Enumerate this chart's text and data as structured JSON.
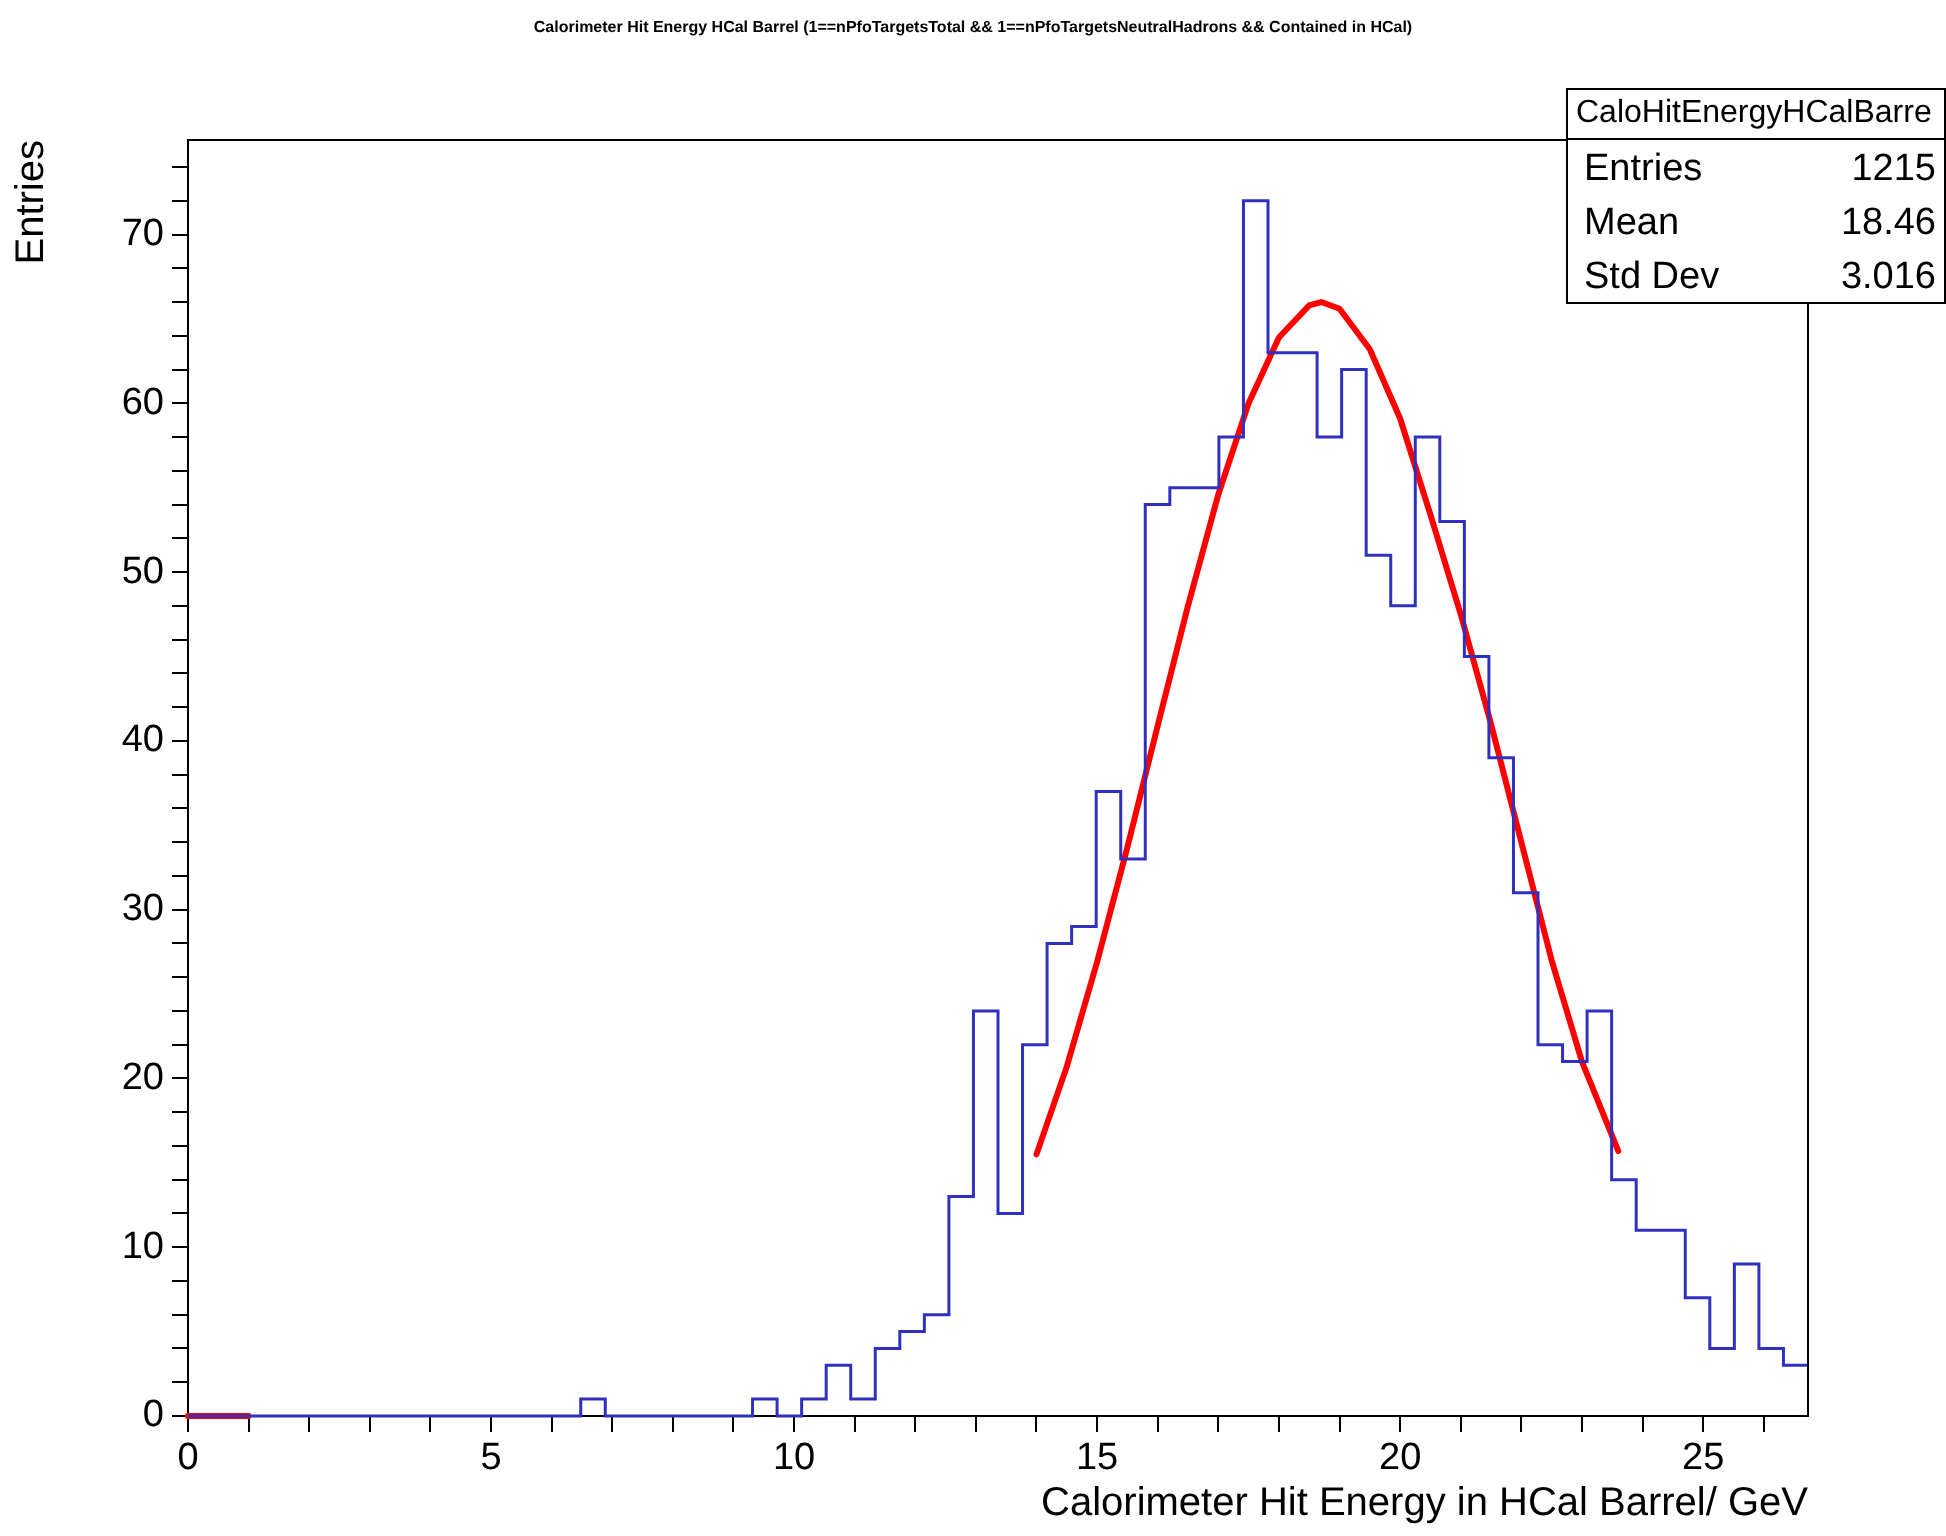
{
  "chart_data": {
    "type": "histogram",
    "title": "Calorimeter Hit Energy HCal Barrel (1==nPfoTargetsTotal && 1==nPfoTargetsNeutralHadrons && Contained in HCal)",
    "xlabel": "Calorimeter Hit Energy in HCal Barrel/ GeV",
    "ylabel": "Entries",
    "xlim": [
      0,
      26.73
    ],
    "ylim": [
      0,
      75.6
    ],
    "xticks": [
      0,
      {
        "value": 1,
        "label": null
      },
      {
        "value": 2,
        "label": null
      },
      {
        "value": 3,
        "label": null
      },
      {
        "value": 4,
        "label": null
      },
      5,
      {
        "value": 6,
        "label": null
      },
      {
        "value": 7,
        "label": null
      },
      {
        "value": 8,
        "label": null
      },
      {
        "value": 9,
        "label": null
      },
      10,
      {
        "value": 11,
        "label": null
      },
      {
        "value": 12,
        "label": null
      },
      {
        "value": 13,
        "label": null
      },
      {
        "value": 14,
        "label": null
      },
      15,
      {
        "value": 16,
        "label": null
      },
      {
        "value": 17,
        "label": null
      },
      {
        "value": 18,
        "label": null
      },
      {
        "value": 19,
        "label": null
      },
      20,
      {
        "value": 21,
        "label": null
      },
      {
        "value": 22,
        "label": null
      },
      {
        "value": 23,
        "label": null
      },
      {
        "value": 24,
        "label": null
      },
      25,
      {
        "value": 26,
        "label": null
      }
    ],
    "yticks": [
      0,
      {
        "value": 2,
        "label": null
      },
      {
        "value": 4,
        "label": null
      },
      {
        "value": 6,
        "label": null
      },
      {
        "value": 8,
        "label": null
      },
      10,
      {
        "value": 12,
        "label": null
      },
      {
        "value": 14,
        "label": null
      },
      {
        "value": 16,
        "label": null
      },
      {
        "value": 18,
        "label": null
      },
      20,
      {
        "value": 22,
        "label": null
      },
      {
        "value": 24,
        "label": null
      },
      {
        "value": 26,
        "label": null
      },
      {
        "value": 28,
        "label": null
      },
      30,
      {
        "value": 32,
        "label": null
      },
      {
        "value": 34,
        "label": null
      },
      {
        "value": 36,
        "label": null
      },
      {
        "value": 38,
        "label": null
      },
      40,
      {
        "value": 42,
        "label": null
      },
      {
        "value": 44,
        "label": null
      },
      {
        "value": 46,
        "label": null
      },
      {
        "value": 48,
        "label": null
      },
      50,
      {
        "value": 52,
        "label": null
      },
      {
        "value": 54,
        "label": null
      },
      {
        "value": 56,
        "label": null
      },
      {
        "value": 58,
        "label": null
      },
      60,
      {
        "value": 62,
        "label": null
      },
      {
        "value": 64,
        "label": null
      },
      {
        "value": 66,
        "label": null
      },
      {
        "value": 68,
        "label": null
      },
      70,
      {
        "value": 72,
        "label": null
      },
      {
        "value": 74,
        "label": null
      }
    ],
    "series": [
      {
        "type": "histogram",
        "color": "#3030c0",
        "bins": [
          0,
          0.405,
          0.81,
          1.215,
          1.62,
          2.025,
          2.43,
          2.835,
          3.24,
          3.645,
          4.05,
          4.455,
          4.86,
          5.265,
          5.67,
          6.075,
          6.48,
          6.885,
          7.29,
          7.695,
          8.1,
          8.505,
          8.91,
          9.315,
          9.72,
          10.125,
          10.53,
          10.935,
          11.34,
          11.745,
          12.15,
          12.555,
          12.96,
          13.365,
          13.77,
          14.175,
          14.58,
          14.985,
          15.39,
          15.795,
          16.2,
          16.605,
          17.01,
          17.415,
          17.82,
          18.225,
          18.63,
          19.035,
          19.44,
          19.845,
          20.25,
          20.655,
          21.06,
          21.465,
          21.87,
          22.275,
          22.68,
          23.085,
          23.49,
          23.895,
          24.3,
          24.705,
          25.11,
          25.515,
          25.92,
          26.325,
          26.73
        ],
        "values": [
          0,
          0,
          0,
          0,
          0,
          0,
          0,
          0,
          0,
          0,
          0,
          0,
          0,
          0,
          0,
          0,
          1,
          0,
          0,
          0,
          0,
          0,
          0,
          1,
          0,
          1,
          3,
          1,
          4,
          5,
          6,
          13,
          24,
          12,
          22,
          28,
          29,
          37,
          33,
          54,
          55,
          55,
          58,
          72,
          63,
          63,
          58,
          62,
          51,
          48,
          58,
          53,
          45,
          39,
          31,
          22,
          21,
          24,
          14,
          11,
          11,
          7,
          4,
          9,
          4,
          3
        ]
      },
      {
        "type": "line",
        "color": "#ff0000",
        "x": [
          14,
          14.5,
          15,
          15.5,
          16,
          16.5,
          17,
          17.5,
          18,
          18.5,
          18.7,
          19,
          19.5,
          20,
          20.5,
          21,
          21.5,
          22,
          22.5,
          23,
          23.6
        ],
        "values": [
          15.5,
          20.7,
          26.9,
          33.7,
          40.9,
          48,
          54.6,
          60,
          63.9,
          65.8,
          66,
          65.6,
          63.2,
          59.1,
          53.4,
          47.5,
          41,
          34,
          27,
          21,
          15.7
        ]
      },
      {
        "type": "line",
        "color": "#ff0000",
        "x": [
          0,
          1
        ],
        "values": [
          0,
          0
        ]
      }
    ],
    "annotations": [
      "CaloHitEnergyHCalBarre",
      "Entries 1215",
      "Mean 18.46",
      "Std Dev 3.016"
    ],
    "legend": false
  }
}
